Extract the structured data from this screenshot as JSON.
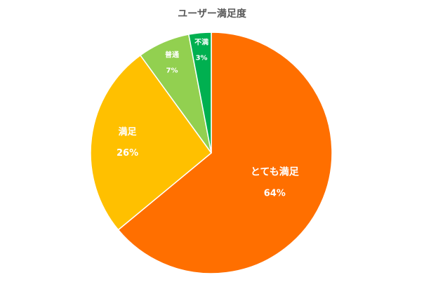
{
  "chart_data": {
    "type": "pie",
    "title": "ユーザー満足度",
    "slices": [
      {
        "label": "とても満足",
        "value": 64,
        "value_label": "64%",
        "color": "#FF6F00"
      },
      {
        "label": "満足",
        "value": 26,
        "value_label": "26%",
        "color": "#FFC000"
      },
      {
        "label": "普通",
        "value": 7,
        "value_label": "7%",
        "color": "#92D050"
      },
      {
        "label": "不満",
        "value": 3,
        "value_label": "3%",
        "color": "#00B050"
      }
    ],
    "start": "12 o'clock",
    "direction": "clockwise",
    "legend": "none"
  }
}
